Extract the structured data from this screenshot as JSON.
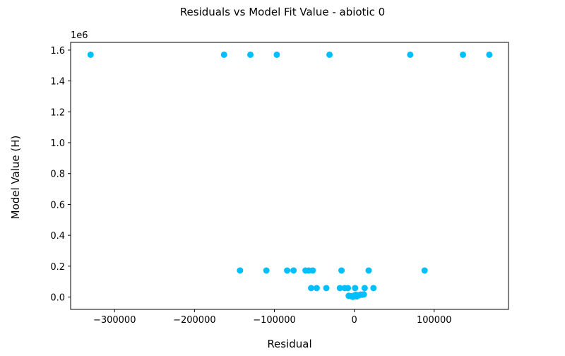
{
  "chart_data": {
    "type": "scatter",
    "title": "Residuals vs Model Fit Value  - abiotic 0",
    "xlabel": "Residual",
    "ylabel": "Model Value (H)",
    "y_offset_label": "1e6",
    "xlim": [
      -355000,
      193000
    ],
    "ylim": [
      -80000,
      1650000
    ],
    "x_ticks": [
      -300000,
      -200000,
      -100000,
      0,
      100000
    ],
    "x_tick_labels": [
      "−300000",
      "−200000",
      "−100000",
      "0",
      "100000"
    ],
    "y_ticks": [
      0,
      200000,
      400000,
      600000,
      800000,
      1000000,
      1200000,
      1400000,
      1600000
    ],
    "y_tick_labels": [
      "0.0",
      "0.2",
      "0.4",
      "0.6",
      "0.8",
      "1.0",
      "1.2",
      "1.4",
      "1.6"
    ],
    "grid": false,
    "marker_color": "#00bfff",
    "points": [
      [
        -330000,
        1570000
      ],
      [
        -163000,
        1570000
      ],
      [
        -130000,
        1570000
      ],
      [
        -97000,
        1570000
      ],
      [
        -31000,
        1570000
      ],
      [
        70000,
        1570000
      ],
      [
        136000,
        1570000
      ],
      [
        169000,
        1570000
      ],
      [
        -143000,
        172000
      ],
      [
        -110000,
        172000
      ],
      [
        -84000,
        172000
      ],
      [
        -76000,
        172000
      ],
      [
        -61000,
        172000
      ],
      [
        -57000,
        172000
      ],
      [
        -52000,
        172000
      ],
      [
        -16000,
        172000
      ],
      [
        18000,
        172000
      ],
      [
        88000,
        172000
      ],
      [
        -54000,
        58000
      ],
      [
        -47000,
        58000
      ],
      [
        -35000,
        58000
      ],
      [
        -18000,
        58000
      ],
      [
        -12000,
        58000
      ],
      [
        -8000,
        58000
      ],
      [
        1000,
        58000
      ],
      [
        13000,
        58000
      ],
      [
        24000,
        58000
      ],
      [
        -7000,
        8000
      ],
      [
        -4000,
        6000
      ],
      [
        -1000,
        3000
      ],
      [
        0,
        10000
      ],
      [
        2000,
        15000
      ],
      [
        4000,
        8000
      ],
      [
        6000,
        12000
      ],
      [
        8000,
        16000
      ],
      [
        10000,
        15000
      ],
      [
        12000,
        17000
      ],
      [
        -2000,
        1000
      ],
      [
        3000,
        4000
      ]
    ]
  }
}
